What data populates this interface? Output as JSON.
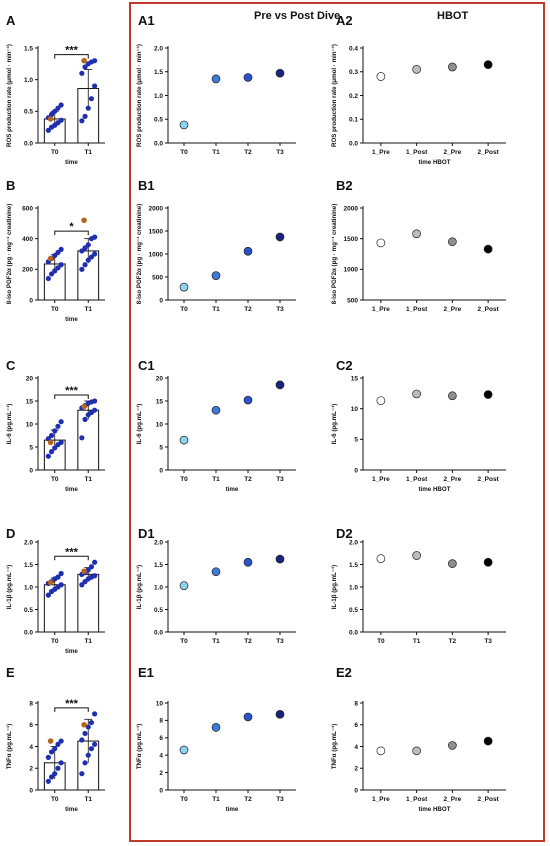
{
  "headers": {
    "pre_post": "Pre vs Post Dive",
    "hbot": "HBOT"
  },
  "colors": {
    "frame": "#c0392b",
    "point_dark_blue": "#1f2fb0",
    "point_brown": "#b5651d",
    "A1": [
      "#8fd3f4",
      "#3e7bd6",
      "#2a52cc",
      "#1a237e"
    ],
    "A2": [
      "#ffffff",
      "#bdbdbd",
      "#8f8f8f",
      "#000000"
    ]
  },
  "chart_data": [
    {
      "id": "A",
      "letter": "A",
      "type": "bar",
      "col": 0,
      "row": 0,
      "categories": [
        "T0",
        "T1"
      ],
      "xlabel": "time",
      "ylabel": "ROS production rate (μmol · min⁻¹)",
      "ylim": [
        0,
        1.5
      ],
      "yticks": [
        "0.0",
        "0.5",
        "1.0",
        "1.5"
      ],
      "values": [
        0.38,
        0.86
      ],
      "sd": [
        0.12,
        0.3
      ],
      "points": [
        [
          0.2,
          0.25,
          0.28,
          0.32,
          0.36,
          0.4,
          0.45,
          0.5,
          0.55,
          0.6
        ],
        [
          0.35,
          0.42,
          0.55,
          0.7,
          0.9,
          1.1,
          1.2,
          1.25,
          1.28,
          1.3
        ]
      ],
      "highlight": [
        0.38,
        1.3
      ],
      "significance": "***"
    },
    {
      "id": "B",
      "letter": "B",
      "type": "bar",
      "col": 0,
      "row": 1,
      "categories": [
        "T0",
        "T1"
      ],
      "xlabel": "time",
      "ylabel": "8-iso PGF2α (pg · mg⁻¹ creatinine)",
      "ylim": [
        0,
        600
      ],
      "yticks": [
        "0",
        "200",
        "400",
        "600"
      ],
      "values": [
        235,
        320
      ],
      "sd": [
        60,
        80
      ],
      "points": [
        [
          140,
          170,
          190,
          210,
          230,
          250,
          270,
          290,
          310,
          330
        ],
        [
          200,
          230,
          260,
          280,
          300,
          320,
          340,
          360,
          400,
          410
        ]
      ],
      "highlight": [
        270,
        520
      ],
      "significance": "*"
    },
    {
      "id": "C",
      "letter": "C",
      "type": "bar",
      "col": 0,
      "row": 2,
      "categories": [
        "T0",
        "T1"
      ],
      "xlabel": "time",
      "ylabel": "IL-6 (pg.mL⁻¹)",
      "ylim": [
        0,
        20
      ],
      "yticks": [
        "0",
        "5",
        "10",
        "15",
        "20"
      ],
      "values": [
        6.5,
        13.0
      ],
      "sd": [
        2.2,
        2.0
      ],
      "points": [
        [
          3.0,
          4.0,
          4.8,
          5.5,
          6.0,
          6.8,
          7.5,
          8.5,
          9.5,
          10.5
        ],
        [
          7.0,
          11.0,
          12.0,
          12.5,
          13.0,
          13.5,
          14.0,
          14.5,
          14.8,
          15.0
        ]
      ],
      "highlight": [
        6.0,
        13.8
      ],
      "significance": "***"
    },
    {
      "id": "D",
      "letter": "D",
      "type": "bar",
      "col": 0,
      "row": 3,
      "categories": [
        "T0",
        "T1"
      ],
      "xlabel": "time",
      "ylabel": "IL-1β (pg.mL⁻¹)",
      "ylim": [
        0,
        2.0
      ],
      "yticks": [
        "0.0",
        "0.5",
        "1.0",
        "1.5",
        "2.0"
      ],
      "values": [
        1.05,
        1.28
      ],
      "sd": [
        0.15,
        0.15
      ],
      "points": [
        [
          0.82,
          0.9,
          0.95,
          1.0,
          1.05,
          1.08,
          1.12,
          1.18,
          1.22,
          1.3
        ],
        [
          1.05,
          1.12,
          1.18,
          1.22,
          1.25,
          1.28,
          1.32,
          1.38,
          1.45,
          1.55
        ]
      ],
      "highlight": [
        1.1,
        1.35
      ],
      "significance": "***"
    },
    {
      "id": "E",
      "letter": "E",
      "type": "bar",
      "col": 0,
      "row": 4,
      "categories": [
        "T0",
        "T1"
      ],
      "xlabel": "time",
      "ylabel": "TNFα (pg.mL⁻¹)",
      "ylim": [
        0,
        8
      ],
      "yticks": [
        "0",
        "2",
        "4",
        "6",
        "8"
      ],
      "values": [
        2.5,
        4.5
      ],
      "sd": [
        1.5,
        2.0
      ],
      "points": [
        [
          0.8,
          1.2,
          1.5,
          2.0,
          2.5,
          3.0,
          3.5,
          3.8,
          4.2,
          4.5
        ],
        [
          1.5,
          2.5,
          3.2,
          3.8,
          4.2,
          4.6,
          5.2,
          5.8,
          6.2,
          7.0
        ]
      ],
      "highlight": [
        4.5,
        6.0
      ],
      "significance": "***"
    },
    {
      "id": "A1",
      "letter": "A1",
      "type": "scatter",
      "col": 1,
      "row": 0,
      "categories": [
        "T0",
        "T1",
        "T2",
        "T3"
      ],
      "xlabel": "",
      "ylabel": "ROS production rate (μmol · min⁻¹)",
      "ylim": [
        0,
        2.0
      ],
      "yticks": [
        "0.0",
        "0.5",
        "1.0",
        "1.5",
        "2.0"
      ],
      "values": [
        0.38,
        1.35,
        1.38,
        1.47
      ]
    },
    {
      "id": "B1",
      "letter": "B1",
      "type": "scatter",
      "col": 1,
      "row": 1,
      "categories": [
        "T0",
        "T1",
        "T2",
        "T3"
      ],
      "xlabel": "",
      "ylabel": "8-iso PGF2α (pg · mg⁻¹ creatinine)",
      "ylim": [
        0,
        2000
      ],
      "yticks": [
        "0",
        "500",
        "1000",
        "1500",
        "2000"
      ],
      "values": [
        280,
        530,
        1060,
        1370
      ]
    },
    {
      "id": "C1",
      "letter": "C1",
      "type": "scatter",
      "col": 1,
      "row": 2,
      "categories": [
        "T0",
        "T1",
        "T2",
        "T3"
      ],
      "xlabel": "time",
      "ylabel": "IL-6 (pg.mL⁻¹)",
      "ylim": [
        0,
        20
      ],
      "yticks": [
        "0",
        "5",
        "10",
        "15",
        "20"
      ],
      "values": [
        6.5,
        13.0,
        15.2,
        18.5
      ]
    },
    {
      "id": "D1",
      "letter": "D1",
      "type": "scatter",
      "col": 1,
      "row": 3,
      "categories": [
        "T0",
        "T1",
        "T2",
        "T3"
      ],
      "xlabel": "",
      "ylabel": "IL-1β (pg.mL⁻¹)",
      "ylim": [
        0,
        2.0
      ],
      "yticks": [
        "0.0",
        "0.5",
        "1.0",
        "1.5",
        "2.0"
      ],
      "values": [
        1.03,
        1.34,
        1.55,
        1.62
      ]
    },
    {
      "id": "E1",
      "letter": "E1",
      "type": "scatter",
      "col": 1,
      "row": 4,
      "categories": [
        "T0",
        "T1",
        "T2",
        "T3"
      ],
      "xlabel": "time",
      "ylabel": "TNFα (pg.mL⁻¹)",
      "ylim": [
        0,
        10
      ],
      "yticks": [
        "0",
        "2",
        "4",
        "6",
        "8",
        "10"
      ],
      "values": [
        4.6,
        7.2,
        8.4,
        8.7
      ]
    },
    {
      "id": "A2",
      "letter": "A2",
      "type": "scatter",
      "col": 2,
      "row": 0,
      "categories": [
        "1_Pre",
        "1_Post",
        "2_Pre",
        "2_Post"
      ],
      "xlabel": "time HBOT",
      "ylabel": "ROS production rate (μmol · min⁻¹)",
      "ylim": [
        0.0,
        0.4
      ],
      "yticks": [
        "0.0",
        "0.1",
        "0.2",
        "0.3",
        "0.4"
      ],
      "values": [
        0.28,
        0.31,
        0.32,
        0.33
      ]
    },
    {
      "id": "B2",
      "letter": "B2",
      "type": "scatter",
      "col": 2,
      "row": 1,
      "categories": [
        "1_Pre",
        "1_Post",
        "2_Pre",
        "2_Post"
      ],
      "xlabel": "",
      "ylabel": "8-iso PGF2α (pg · mg⁻¹ creatinine)",
      "ylim": [
        500,
        2000
      ],
      "yticks": [
        "500",
        "1000",
        "1500",
        "2000"
      ],
      "values": [
        1430,
        1580,
        1450,
        1330
      ]
    },
    {
      "id": "C2",
      "letter": "C2",
      "type": "scatter",
      "col": 2,
      "row": 2,
      "categories": [
        "1_Pre",
        "1_Post",
        "2_Pre",
        "2_Post"
      ],
      "xlabel": "time HBOT",
      "ylabel": "IL-6 (pg.mL⁻¹)",
      "ylim": [
        0,
        15
      ],
      "yticks": [
        "0",
        "5",
        "10",
        "15"
      ],
      "values": [
        11.3,
        12.4,
        12.1,
        12.3
      ]
    },
    {
      "id": "D2",
      "letter": "D2",
      "type": "scatter",
      "col": 2,
      "row": 3,
      "categories": [
        "T0",
        "T1",
        "T2",
        "T3"
      ],
      "xlabel": "",
      "ylabel": "IL-1β (pg.mL⁻¹)",
      "ylim": [
        0,
        2.0
      ],
      "yticks": [
        "0.0",
        "0.5",
        "1.0",
        "1.5",
        "2.0"
      ],
      "values": [
        1.63,
        1.7,
        1.52,
        1.55
      ]
    },
    {
      "id": "E2",
      "letter": "E2",
      "type": "scatter",
      "col": 2,
      "row": 4,
      "categories": [
        "1_Pre",
        "1_Post",
        "2_Pre",
        "2_Post"
      ],
      "xlabel": "time HBOT",
      "ylabel": "TNFα (pg.mL⁻¹)",
      "ylim": [
        0,
        8
      ],
      "yticks": [
        "0",
        "2",
        "4",
        "6",
        "8"
      ],
      "values": [
        3.6,
        3.6,
        4.1,
        4.5
      ]
    }
  ]
}
